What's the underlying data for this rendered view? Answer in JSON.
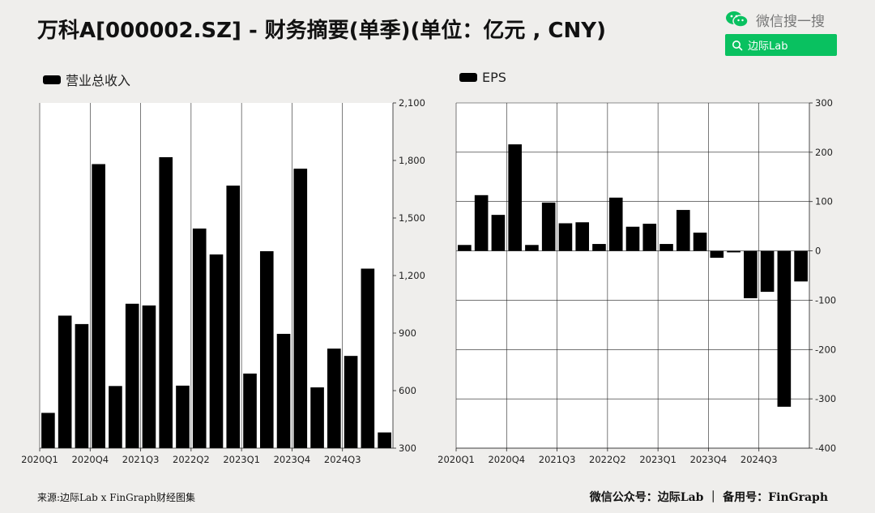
{
  "header": {
    "title": "万科A[000002.SZ] - 财务摘要(单季)(单位：亿元 , CNY)"
  },
  "wechat": {
    "label": "微信搜一搜",
    "search_text": "边际Lab",
    "icon": "wechat-icon",
    "brand_color": "#09c160"
  },
  "footer": {
    "source": "来源:边际Lab x FinGraph财经图集",
    "credit": "微信公众号：边际Lab ｜ 备用号：FinGraph"
  },
  "chart_data": [
    {
      "type": "bar",
      "legend": "营业总收入",
      "series": [
        {
          "name": "营业总收入",
          "values": [
            484,
            991,
            947,
            1781,
            624,
            1053,
            1044,
            1817,
            626,
            1445,
            1310,
            1669,
            689,
            1327,
            896,
            1757,
            617,
            819,
            781,
            1236,
            382
          ]
        }
      ],
      "categories": [
        "2020Q1",
        "2020Q2",
        "2020Q3",
        "2020Q4",
        "2021Q1",
        "2021Q2",
        "2021Q3",
        "2021Q4",
        "2022Q1",
        "2022Q2",
        "2022Q3",
        "2022Q4",
        "2023Q1",
        "2023Q2",
        "2023Q3",
        "2023Q4",
        "2024Q1",
        "2024Q2",
        "2024Q3",
        "2024Q4",
        "2025Q1"
      ],
      "xtick_labels": [
        "2020Q1",
        "2020Q4",
        "2021Q3",
        "2022Q2",
        "2023Q1",
        "2023Q4",
        "2024Q3"
      ],
      "ytick_labels": [
        "300",
        "600",
        "900",
        "1,200",
        "1,500",
        "1,800",
        "2,100"
      ],
      "ylim": [
        300,
        2100
      ],
      "grid": "vertical",
      "bar_color": "#000000"
    },
    {
      "type": "bar",
      "legend": "EPS",
      "series": [
        {
          "name": "EPS",
          "values": [
            12,
            113,
            73,
            216,
            12,
            98,
            56,
            58,
            14,
            108,
            49,
            55,
            14,
            83,
            37,
            -14,
            -3,
            -96,
            -83,
            -316,
            -62
          ]
        }
      ],
      "categories": [
        "2020Q1",
        "2020Q2",
        "2020Q3",
        "2020Q4",
        "2021Q1",
        "2021Q2",
        "2021Q3",
        "2021Q4",
        "2022Q1",
        "2022Q2",
        "2022Q3",
        "2022Q4",
        "2023Q1",
        "2023Q2",
        "2023Q3",
        "2023Q4",
        "2024Q1",
        "2024Q2",
        "2024Q3",
        "2024Q4",
        "2025Q1"
      ],
      "xtick_labels": [
        "2020Q1",
        "2020Q4",
        "2021Q3",
        "2022Q2",
        "2023Q1",
        "2023Q4",
        "2024Q3"
      ],
      "ytick_labels": [
        "-400",
        "-300",
        "-200",
        "-100",
        "0",
        "100",
        "200",
        "300"
      ],
      "ylim": [
        -400,
        300
      ],
      "grid": "both",
      "bar_color": "#000000"
    }
  ]
}
